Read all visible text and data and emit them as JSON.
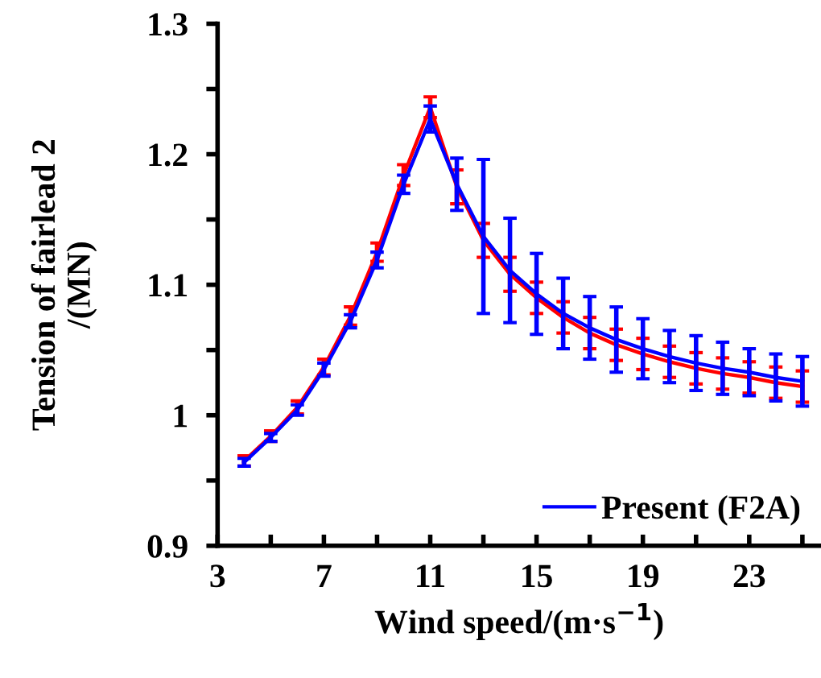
{
  "chart_data": {
    "type": "line",
    "xlabel": "Wind speed/(m·s$^{−1}$)",
    "ylabel": "Tension of fairlead 2\n/(MN)",
    "x": [
      4,
      5,
      6,
      7,
      8,
      9,
      10,
      11,
      12,
      13,
      14,
      15,
      16,
      17,
      18,
      19,
      20,
      21,
      22,
      23,
      24,
      25
    ],
    "series": [
      {
        "color": "#ff0000",
        "values": [
          0.965,
          0.984,
          1.006,
          1.037,
          1.076,
          1.125,
          1.184,
          1.236,
          1.175,
          1.134,
          1.108,
          1.09,
          1.075,
          1.063,
          1.054,
          1.047,
          1.041,
          1.036,
          1.032,
          1.029,
          1.025,
          1.022
        ],
        "errors": [
          0.004,
          0.004,
          0.005,
          0.006,
          0.007,
          0.007,
          0.008,
          0.008,
          0.013,
          0.013,
          0.013,
          0.012,
          0.012,
          0.012,
          0.012,
          0.012,
          0.012,
          0.012,
          0.012,
          0.012,
          0.012,
          0.012
        ]
      },
      {
        "name": "Present (F2A)",
        "color": "#0000ff",
        "values": [
          0.964,
          0.983,
          1.004,
          1.035,
          1.072,
          1.119,
          1.177,
          1.227,
          1.177,
          1.137,
          1.111,
          1.093,
          1.078,
          1.067,
          1.058,
          1.051,
          1.045,
          1.04,
          1.036,
          1.033,
          1.029,
          1.026
        ],
        "errors": [
          0.003,
          0.003,
          0.004,
          0.005,
          0.005,
          0.006,
          0.007,
          0.01,
          0.02,
          0.059,
          0.04,
          0.031,
          0.027,
          0.024,
          0.025,
          0.023,
          0.02,
          0.021,
          0.02,
          0.018,
          0.018,
          0.019
        ]
      }
    ],
    "xlim": [
      3,
      25.7
    ],
    "ylim": [
      0.9,
      1.3
    ],
    "xticks": [
      3,
      {
        "value": 5,
        "label": null
      },
      7,
      {
        "value": 9,
        "label": null
      },
      11,
      {
        "value": 13,
        "label": null
      },
      15,
      {
        "value": 17,
        "label": null
      },
      19,
      {
        "value": 21,
        "label": null
      },
      23,
      {
        "value": 25,
        "label": null
      }
    ],
    "yticks": [
      0.9,
      {
        "value": 0.95,
        "label": null
      },
      1,
      {
        "value": 1.05,
        "label": null
      },
      1.1,
      {
        "value": 1.15,
        "label": null
      },
      1.2,
      {
        "value": 1.25,
        "label": null
      },
      1.3
    ],
    "legend": "bottom right",
    "grid": false,
    "marker": "none",
    "line_style": "solid"
  }
}
